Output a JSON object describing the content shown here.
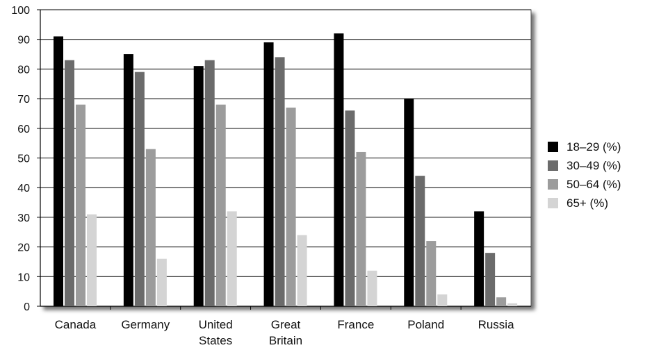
{
  "chart_data": {
    "type": "bar",
    "title": "",
    "xlabel": "",
    "ylabel": "",
    "ylim": [
      0,
      100
    ],
    "yticks": [
      "0",
      "10",
      "20",
      "30",
      "40",
      "50",
      "60",
      "70",
      "80",
      "90",
      "100"
    ],
    "grid": "horizontal",
    "legend_position": "right",
    "categories": [
      [
        "Canada"
      ],
      [
        "Germany"
      ],
      [
        "United",
        "States"
      ],
      [
        "Great",
        "Britain"
      ],
      [
        "France"
      ],
      [
        "Poland"
      ],
      [
        "Russia"
      ]
    ],
    "series": [
      {
        "name": "18–29 (%)",
        "color": "#000000",
        "values": [
          91,
          85,
          81,
          89,
          92,
          70,
          32
        ]
      },
      {
        "name": "30–49 (%)",
        "color": "#6b6b6b",
        "values": [
          83,
          79,
          83,
          84,
          66,
          44,
          18
        ]
      },
      {
        "name": "50–64 (%)",
        "color": "#9c9c9c",
        "values": [
          68,
          53,
          68,
          67,
          52,
          22,
          3
        ]
      },
      {
        "name": "65+ (%)",
        "color": "#d4d4d4",
        "values": [
          31,
          16,
          32,
          24,
          12,
          4,
          1
        ]
      }
    ]
  }
}
